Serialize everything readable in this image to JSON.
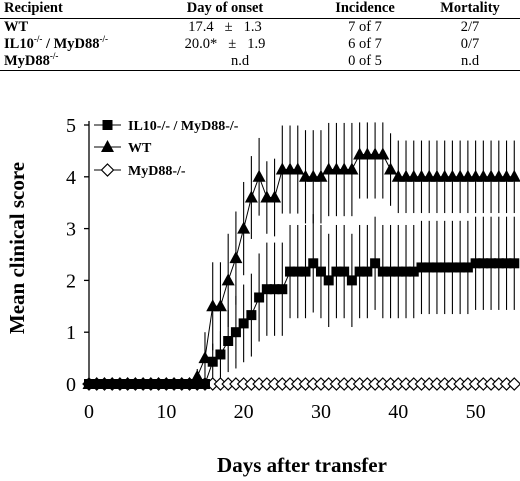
{
  "table": {
    "headers": [
      "Recipient",
      "Day of onset",
      "Incidence",
      "Mortality"
    ],
    "rows": [
      {
        "recipient": "WT",
        "recipient_sup": "",
        "recipient_mid": "",
        "recipient_sup2": "",
        "onset_mean": "17.4",
        "onset_pm": "±",
        "onset_sd": "1.3",
        "onset_nd": "",
        "incidence": "7 of 7",
        "mortality": "2/7"
      },
      {
        "recipient": "IL10",
        "recipient_sup": "-/-",
        "recipient_mid": " / MyD88",
        "recipient_sup2": "-/-",
        "onset_mean": "20.0*",
        "onset_pm": "±",
        "onset_sd": "1.9",
        "onset_nd": "",
        "incidence": "6 of 7",
        "mortality": "0/7"
      },
      {
        "recipient": "MyD88",
        "recipient_sup": "-/-",
        "recipient_mid": "",
        "recipient_sup2": "",
        "onset_mean": "",
        "onset_pm": "",
        "onset_sd": "",
        "onset_nd": "n.d",
        "incidence": "0 of 5",
        "mortality": "n.d"
      }
    ]
  },
  "chart_data": {
    "type": "line",
    "title": "",
    "xlabel": "Days after transfer",
    "ylabel": "Mean clinical score",
    "xlim": [
      0,
      56
    ],
    "ylim": [
      0,
      5
    ],
    "xticks": [
      0,
      10,
      20,
      30,
      40,
      50
    ],
    "yticks": [
      0,
      1,
      2,
      3,
      4,
      5
    ],
    "grid": false,
    "legend_position": "top-left",
    "series": [
      {
        "name": "IL10-/- / MyD88-/-",
        "marker": "filled-square",
        "color": "#000000",
        "x": [
          0,
          1,
          2,
          3,
          4,
          5,
          6,
          7,
          8,
          9,
          10,
          11,
          12,
          13,
          14,
          15,
          16,
          17,
          18,
          19,
          20,
          21,
          22,
          23,
          24,
          25,
          26,
          27,
          28,
          29,
          30,
          31,
          32,
          33,
          34,
          35,
          36,
          37,
          38,
          39,
          40,
          41,
          42,
          43,
          44,
          45,
          46,
          47,
          48,
          49,
          50,
          51,
          52,
          53,
          54,
          55
        ],
        "y": [
          0,
          0,
          0,
          0,
          0,
          0,
          0,
          0,
          0,
          0,
          0,
          0,
          0,
          0,
          0,
          0,
          0.43,
          0.57,
          0.83,
          1.0,
          1.17,
          1.33,
          1.67,
          1.83,
          1.83,
          1.83,
          2.17,
          2.17,
          2.17,
          2.33,
          2.17,
          2.0,
          2.17,
          2.17,
          2.0,
          2.17,
          2.17,
          2.33,
          2.17,
          2.17,
          2.17,
          2.17,
          2.17,
          2.25,
          2.25,
          2.25,
          2.25,
          2.25,
          2.25,
          2.25,
          2.33,
          2.33,
          2.33,
          2.33,
          2.33,
          2.33
        ],
        "error": [
          0,
          0,
          0,
          0,
          0,
          0,
          0,
          0,
          0,
          0,
          0,
          0,
          0,
          0,
          0,
          0,
          0.35,
          0.45,
          0.6,
          0.7,
          0.75,
          0.8,
          0.85,
          0.9,
          0.9,
          0.9,
          0.9,
          0.9,
          0.9,
          0.95,
          0.9,
          0.9,
          0.9,
          0.9,
          0.9,
          0.9,
          0.9,
          0.9,
          0.9,
          0.9,
          0.9,
          0.9,
          0.9,
          0.9,
          0.9,
          0.9,
          0.9,
          0.9,
          0.9,
          0.9,
          0.9,
          0.9,
          0.9,
          0.9,
          0.9,
          0.9
        ]
      },
      {
        "name": "WT",
        "marker": "filled-triangle",
        "color": "#000000",
        "x": [
          0,
          1,
          2,
          3,
          4,
          5,
          6,
          7,
          8,
          9,
          10,
          11,
          12,
          13,
          14,
          15,
          16,
          17,
          18,
          19,
          20,
          21,
          22,
          23,
          24,
          25,
          26,
          27,
          28,
          29,
          30,
          31,
          32,
          33,
          34,
          35,
          36,
          37,
          38,
          39,
          40,
          41,
          42,
          43,
          44,
          45,
          46,
          47,
          48,
          49,
          50,
          51,
          52,
          53,
          54,
          55
        ],
        "y": [
          0,
          0,
          0,
          0,
          0,
          0,
          0,
          0,
          0,
          0,
          0,
          0,
          0,
          0,
          0.14,
          0.5,
          1.5,
          1.5,
          2.0,
          2.43,
          3.0,
          3.6,
          4.0,
          3.6,
          3.6,
          4.14,
          4.14,
          4.14,
          4.0,
          4.0,
          4.0,
          4.14,
          4.14,
          4.14,
          4.14,
          4.43,
          4.43,
          4.43,
          4.43,
          4.14,
          4.0,
          4.0,
          4.0,
          4.0,
          4.0,
          4.0,
          4.0,
          4.0,
          4.0,
          4.0,
          4.0,
          4.0,
          4.0,
          4.0,
          4.0,
          4.0
        ],
        "error": [
          0,
          0,
          0,
          0,
          0,
          0,
          0,
          0,
          0,
          0,
          0,
          0,
          0,
          0,
          0.15,
          0.5,
          0.85,
          0.85,
          0.9,
          0.9,
          0.9,
          0.8,
          0.75,
          0.7,
          0.75,
          0.85,
          0.85,
          0.85,
          0.9,
          0.9,
          0.9,
          0.9,
          0.9,
          0.9,
          0.9,
          0.85,
          0.85,
          0.85,
          0.85,
          0.7,
          0.7,
          0.7,
          0.7,
          0.7,
          0.7,
          0.7,
          0.7,
          0.7,
          0.7,
          0.7,
          0.7,
          0.7,
          0.7,
          0.7,
          0.7,
          0.7
        ]
      },
      {
        "name": "MyD88-/-",
        "marker": "open-diamond",
        "color": "#000000",
        "x": [
          0,
          1,
          2,
          3,
          4,
          5,
          6,
          7,
          8,
          9,
          10,
          11,
          12,
          13,
          14,
          15,
          16,
          17,
          18,
          19,
          20,
          21,
          22,
          23,
          24,
          25,
          26,
          27,
          28,
          29,
          30,
          31,
          32,
          33,
          34,
          35,
          36,
          37,
          38,
          39,
          40,
          41,
          42,
          43,
          44,
          45,
          46,
          47,
          48,
          49,
          50,
          51,
          52,
          53,
          54,
          55
        ],
        "y": [
          0,
          0,
          0,
          0,
          0,
          0,
          0,
          0,
          0,
          0,
          0,
          0,
          0,
          0,
          0,
          0,
          0,
          0,
          0,
          0,
          0,
          0,
          0,
          0,
          0,
          0,
          0,
          0,
          0,
          0,
          0,
          0,
          0,
          0,
          0,
          0,
          0,
          0,
          0,
          0,
          0,
          0,
          0,
          0,
          0,
          0,
          0,
          0,
          0,
          0,
          0,
          0,
          0,
          0,
          0,
          0
        ],
        "error": [
          0,
          0,
          0,
          0,
          0,
          0,
          0,
          0,
          0,
          0,
          0,
          0,
          0,
          0,
          0,
          0,
          0,
          0,
          0,
          0,
          0,
          0,
          0,
          0,
          0,
          0,
          0,
          0,
          0,
          0,
          0,
          0,
          0,
          0,
          0,
          0,
          0,
          0,
          0,
          0,
          0,
          0,
          0,
          0,
          0,
          0,
          0,
          0,
          0,
          0,
          0,
          0,
          0,
          0,
          0,
          0
        ]
      }
    ]
  }
}
